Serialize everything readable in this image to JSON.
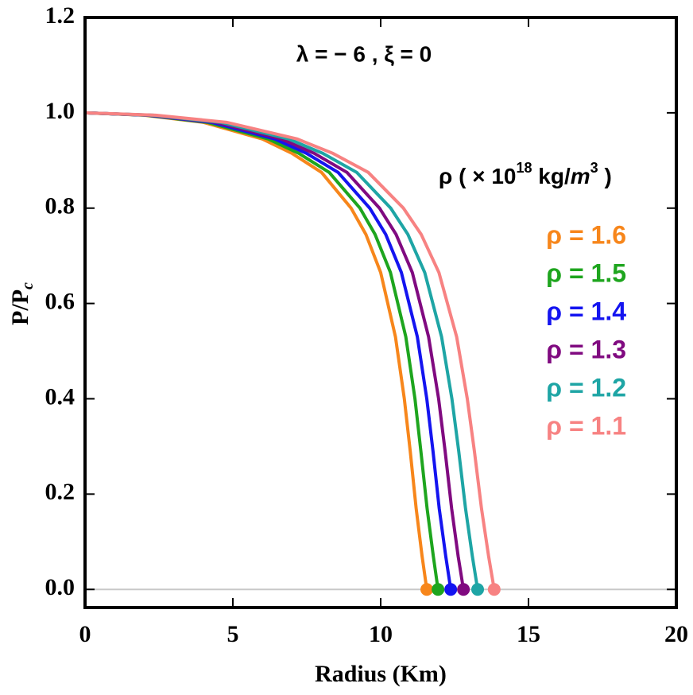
{
  "chart_data": {
    "type": "line",
    "title": "λ = − 6 , ξ = 0",
    "x_label": "Radius (Km)",
    "y_label": [
      "P/P",
      "c"
    ],
    "legend_title": [
      "ρ ( × 10",
      "18",
      " kg/",
      "m",
      "3",
      " )"
    ],
    "xlim": [
      0,
      20
    ],
    "ylim": [
      -0.038,
      1.2
    ],
    "xticks": [
      0,
      5,
      10,
      15,
      20
    ],
    "yticks": [
      {
        "value": 0,
        "label": "0.0"
      },
      {
        "value": 0.2,
        "label": "0.2"
      },
      {
        "value": 0.4,
        "label": "0.4"
      },
      {
        "value": 0.6,
        "label": "0.6"
      },
      {
        "value": 0.8,
        "label": "0.8"
      },
      {
        "value": 1.0,
        "label": "1.0"
      },
      {
        "value": 1.2,
        "label": "1.2"
      }
    ],
    "zero_line": true,
    "end_markers": true,
    "series": [
      {
        "name": "ρ = 1.6",
        "color": "#f7861b",
        "x": [
          0,
          2,
          4,
          6,
          7,
          8,
          9,
          9.5,
          10,
          10.5,
          10.8,
          11,
          11.2,
          11.4,
          11.56
        ],
        "values": [
          1,
          0.995,
          0.98,
          0.945,
          0.915,
          0.875,
          0.8,
          0.745,
          0.665,
          0.53,
          0.4,
          0.29,
          0.17,
          0.07,
          0
        ]
      },
      {
        "name": "ρ = 1.5",
        "color": "#1ea51e",
        "x": [
          0,
          2.07,
          4.13,
          6.2,
          7.23,
          8.26,
          9.3,
          9.81,
          10.33,
          10.85,
          11.16,
          11.36,
          11.57,
          11.78,
          11.94
        ],
        "values": [
          1,
          0.995,
          0.98,
          0.945,
          0.915,
          0.875,
          0.8,
          0.745,
          0.665,
          0.53,
          0.4,
          0.29,
          0.17,
          0.07,
          0
        ]
      },
      {
        "name": "ρ = 1.4",
        "color": "#1414f0",
        "x": [
          0,
          2.14,
          4.28,
          6.42,
          7.49,
          8.56,
          9.63,
          10.17,
          10.7,
          11.24,
          11.56,
          11.77,
          11.98,
          12.2,
          12.37
        ],
        "values": [
          1,
          0.995,
          0.98,
          0.945,
          0.915,
          0.875,
          0.8,
          0.745,
          0.665,
          0.53,
          0.4,
          0.29,
          0.17,
          0.07,
          0
        ]
      },
      {
        "name": "ρ = 1.3",
        "color": "#800a80",
        "x": [
          0,
          2.21,
          4.43,
          6.64,
          7.75,
          8.86,
          9.96,
          10.52,
          11.07,
          11.62,
          11.96,
          12.18,
          12.4,
          12.62,
          12.8
        ],
        "values": [
          1,
          0.995,
          0.98,
          0.945,
          0.915,
          0.875,
          0.8,
          0.745,
          0.665,
          0.53,
          0.4,
          0.29,
          0.17,
          0.07,
          0
        ]
      },
      {
        "name": "ρ = 1.2",
        "color": "#1ea5a5",
        "x": [
          0,
          2.3,
          4.6,
          6.89,
          8.04,
          9.19,
          10.34,
          10.92,
          11.49,
          12.06,
          12.41,
          12.64,
          12.87,
          13.1,
          13.28
        ],
        "values": [
          1,
          0.995,
          0.98,
          0.945,
          0.915,
          0.875,
          0.8,
          0.745,
          0.665,
          0.53,
          0.4,
          0.29,
          0.17,
          0.07,
          0
        ]
      },
      {
        "name": "ρ = 1.1",
        "color": "#f78282",
        "x": [
          0,
          2.39,
          4.79,
          7.18,
          8.38,
          9.58,
          10.77,
          11.37,
          11.97,
          12.57,
          12.93,
          13.17,
          13.41,
          13.65,
          13.84
        ],
        "values": [
          1,
          0.995,
          0.98,
          0.945,
          0.915,
          0.875,
          0.8,
          0.745,
          0.665,
          0.53,
          0.4,
          0.29,
          0.17,
          0.07,
          0
        ]
      }
    ]
  }
}
